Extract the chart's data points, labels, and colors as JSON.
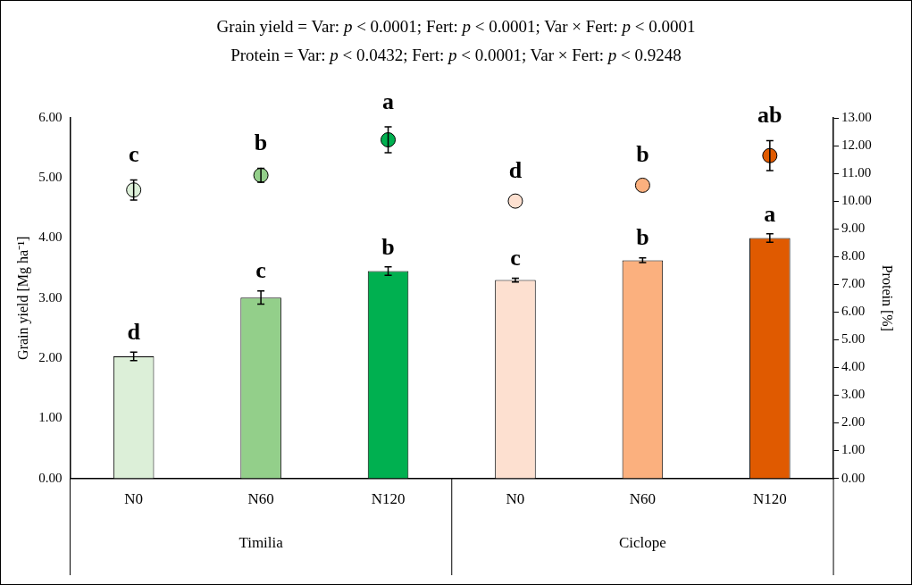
{
  "chart_data": {
    "type": "bar",
    "title": "Grain yield = Var: p < 0.0001; Fert: p < 0.0001; Var × Fert: p < 0.0001",
    "subtitle": "Protein = Var: p < 0.0432; Fert: p < 0.0001; Var × Fert: p < 0.9248",
    "ylabel": "Grain yield [Mg ha⁻¹]",
    "y2label": "Protein [%]",
    "categories": [
      "N0",
      "N60",
      "N120",
      "N0",
      "N60",
      "N120"
    ],
    "annotations": [
      "Timilia",
      "Ciclope"
    ],
    "series": [
      {
        "colors": [
          "#dcefd8",
          "#93cf8a",
          "#00b050",
          "#fde0d0",
          "#fbb07e",
          "#e05a00"
        ],
        "values": [
          2.03,
          3.01,
          3.45,
          3.3,
          3.63,
          4.0
        ],
        "errors": [
          0.07,
          0.11,
          0.07,
          0.03,
          0.04,
          0.07
        ],
        "value_labels": [
          "d",
          "c",
          "b",
          "c",
          "b",
          "a"
        ]
      },
      {
        "type": "scatter",
        "axis": "y2",
        "colors": [
          "#dcefd8",
          "#93cf8a",
          "#00b050",
          "#fde0d0",
          "#fbb07e",
          "#e05a00"
        ],
        "values": [
          10.4,
          10.93,
          12.21,
          10.0,
          10.57,
          11.64
        ],
        "errors": [
          0.36,
          0.25,
          0.47,
          null,
          null,
          0.54
        ],
        "value_labels": [
          "c",
          "b",
          "a",
          "d",
          "b",
          "ab"
        ]
      }
    ],
    "ylim": [
      0,
      6
    ],
    "yticks": [
      {
        "value": 0,
        "label": "0.00"
      },
      {
        "value": 1,
        "label": "1.00"
      },
      {
        "value": 2,
        "label": "2.00"
      },
      {
        "value": 3,
        "label": "3.00"
      },
      {
        "value": 4,
        "label": "4.00"
      },
      {
        "value": 5,
        "label": "5.00"
      },
      {
        "value": 6,
        "label": "6.00"
      }
    ],
    "y2lim": [
      0,
      13
    ],
    "y2ticks": [
      {
        "value": 0,
        "label": "0.00"
      },
      {
        "value": 1,
        "label": "1.00"
      },
      {
        "value": 2,
        "label": "2.00"
      },
      {
        "value": 3,
        "label": "3.00"
      },
      {
        "value": 4,
        "label": "4.00"
      },
      {
        "value": 5,
        "label": "5.00"
      },
      {
        "value": 6,
        "label": "6.00"
      },
      {
        "value": 7,
        "label": "7.00"
      },
      {
        "value": 8,
        "label": "8.00"
      },
      {
        "value": 9,
        "label": "9.00"
      },
      {
        "value": 10,
        "label": "10.00"
      },
      {
        "value": 11,
        "label": "11.00"
      },
      {
        "value": 12,
        "label": "12.00"
      },
      {
        "value": 13,
        "label": "13.00"
      }
    ],
    "marker": "circle",
    "grid": false,
    "legend": false
  }
}
